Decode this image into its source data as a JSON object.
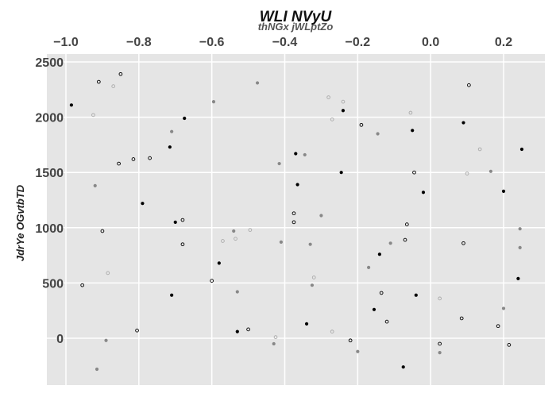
{
  "chart_data": {
    "type": "scatter",
    "title": "WLI NVyU",
    "subtitle": "thNGx jWLptZo",
    "xlabel": "",
    "ylabel": "JdrYe OGvtbTD",
    "x_axis_position": "top",
    "xlim": [
      -1.01,
      0.32
    ],
    "ylim": [
      -420,
      2560
    ],
    "x_ticks": [
      -1.0,
      -0.8,
      -0.6,
      -0.4,
      -0.2,
      0.0,
      0.2
    ],
    "x_tick_labels": [
      "−1.0",
      "−0.8",
      "−0.6",
      "−0.4",
      "−0.2",
      "0.0",
      "0.2"
    ],
    "y_ticks": [
      0,
      500,
      1000,
      1500,
      2000,
      2500
    ],
    "y_tick_labels": [
      "0",
      "500",
      "1000",
      "1500",
      "2000",
      "2500"
    ],
    "grid": true,
    "legend": "none",
    "colors": {
      "background": "#e5e5e5",
      "grid": "#ffffff",
      "black": "#000000",
      "dark_gray": "#888888",
      "light_gray": "#aaaaaa"
    },
    "series": [
      {
        "color": "black",
        "marker": "filled",
        "points": [
          {
            "x": -0.985,
            "y": 2110
          },
          {
            "x": -0.675,
            "y": 1990
          },
          {
            "x": -0.715,
            "y": 1730
          },
          {
            "x": -0.79,
            "y": 1220
          },
          {
            "x": -0.7,
            "y": 1050
          },
          {
            "x": -0.71,
            "y": 390
          },
          {
            "x": -0.58,
            "y": 680
          },
          {
            "x": -0.53,
            "y": 60
          },
          {
            "x": -0.37,
            "y": 1670
          },
          {
            "x": -0.365,
            "y": 1390
          },
          {
            "x": -0.24,
            "y": 2060
          },
          {
            "x": -0.245,
            "y": 1500
          },
          {
            "x": -0.34,
            "y": 130
          },
          {
            "x": -0.05,
            "y": 1880
          },
          {
            "x": -0.02,
            "y": 1320
          },
          {
            "x": -0.14,
            "y": 760
          },
          {
            "x": -0.155,
            "y": 260
          },
          {
            "x": -0.04,
            "y": 390
          },
          {
            "x": -0.075,
            "y": -260
          },
          {
            "x": 0.09,
            "y": 1950
          },
          {
            "x": 0.25,
            "y": 1710
          },
          {
            "x": 0.2,
            "y": 1330
          },
          {
            "x": 0.24,
            "y": 540
          }
        ]
      },
      {
        "color": "black",
        "marker": "hollow",
        "points": [
          {
            "x": -0.91,
            "y": 2320
          },
          {
            "x": -0.85,
            "y": 2390
          },
          {
            "x": -0.855,
            "y": 1580
          },
          {
            "x": -0.815,
            "y": 1620
          },
          {
            "x": -0.77,
            "y": 1630
          },
          {
            "x": -0.9,
            "y": 970
          },
          {
            "x": -0.68,
            "y": 1070
          },
          {
            "x": -0.68,
            "y": 850
          },
          {
            "x": -0.955,
            "y": 480
          },
          {
            "x": -0.805,
            "y": 70
          },
          {
            "x": -0.6,
            "y": 520
          },
          {
            "x": -0.5,
            "y": 80
          },
          {
            "x": -0.375,
            "y": 1130
          },
          {
            "x": -0.375,
            "y": 1050
          },
          {
            "x": -0.19,
            "y": 1930
          },
          {
            "x": -0.22,
            "y": -20
          },
          {
            "x": -0.065,
            "y": 1030
          },
          {
            "x": -0.07,
            "y": 890
          },
          {
            "x": -0.045,
            "y": 1500
          },
          {
            "x": -0.135,
            "y": 410
          },
          {
            "x": -0.12,
            "y": 150
          },
          {
            "x": 0.025,
            "y": -50
          },
          {
            "x": 0.105,
            "y": 2290
          },
          {
            "x": 0.09,
            "y": 860
          },
          {
            "x": 0.085,
            "y": 180
          },
          {
            "x": 0.185,
            "y": 110
          },
          {
            "x": 0.215,
            "y": -60
          }
        ]
      },
      {
        "color": "dark_gray",
        "marker": "filled",
        "points": [
          {
            "x": -0.92,
            "y": 1380
          },
          {
            "x": -0.915,
            "y": -280
          },
          {
            "x": -0.89,
            "y": -20
          },
          {
            "x": -0.71,
            "y": 1870
          },
          {
            "x": -0.595,
            "y": 2140
          },
          {
            "x": -0.475,
            "y": 2310
          },
          {
            "x": -0.54,
            "y": 970
          },
          {
            "x": -0.53,
            "y": 420
          },
          {
            "x": -0.415,
            "y": 1580
          },
          {
            "x": -0.41,
            "y": 870
          },
          {
            "x": -0.43,
            "y": -50
          },
          {
            "x": -0.345,
            "y": 1660
          },
          {
            "x": -0.33,
            "y": 850
          },
          {
            "x": -0.3,
            "y": 1110
          },
          {
            "x": -0.325,
            "y": 480
          },
          {
            "x": -0.2,
            "y": -120
          },
          {
            "x": -0.145,
            "y": 1850
          },
          {
            "x": -0.17,
            "y": 640
          },
          {
            "x": -0.11,
            "y": 860
          },
          {
            "x": 0.025,
            "y": -130
          },
          {
            "x": 0.165,
            "y": 1510
          },
          {
            "x": 0.2,
            "y": 270
          },
          {
            "x": 0.245,
            "y": 990
          },
          {
            "x": 0.245,
            "y": 820
          }
        ]
      },
      {
        "color": "light_gray",
        "marker": "hollow",
        "points": [
          {
            "x": -0.925,
            "y": 2020
          },
          {
            "x": -0.87,
            "y": 2280
          },
          {
            "x": -0.885,
            "y": 590
          },
          {
            "x": -0.57,
            "y": 880
          },
          {
            "x": -0.535,
            "y": 900
          },
          {
            "x": -0.495,
            "y": 980
          },
          {
            "x": -0.425,
            "y": 10
          },
          {
            "x": -0.28,
            "y": 2180
          },
          {
            "x": -0.27,
            "y": 1980
          },
          {
            "x": -0.24,
            "y": 2140
          },
          {
            "x": -0.32,
            "y": 550
          },
          {
            "x": -0.27,
            "y": 60
          },
          {
            "x": -0.055,
            "y": 2040
          },
          {
            "x": 0.025,
            "y": 360
          },
          {
            "x": 0.1,
            "y": 1490
          },
          {
            "x": 0.135,
            "y": 1710
          }
        ]
      }
    ]
  }
}
